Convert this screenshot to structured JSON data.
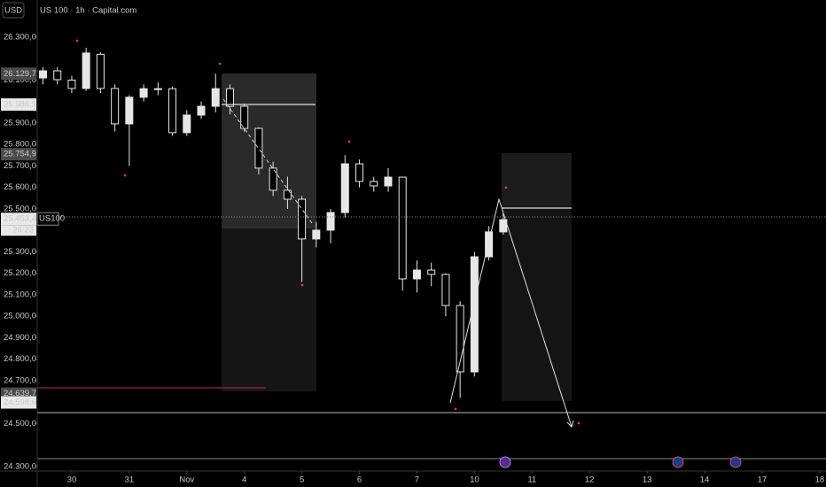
{
  "chart_data": {
    "type": "candlestick",
    "title": "US 100 · 1h · Capital.com",
    "currency": "USD",
    "symbol": "US100",
    "countdown": "26:23",
    "color": "#e6e6e6",
    "x": [
      -0.5,
      -0.25,
      0,
      0.25,
      0.5,
      0.75,
      1,
      1.25,
      1.5,
      1.75,
      2,
      2.25,
      2.5,
      2.75,
      3,
      3.25,
      3.5,
      3.75,
      4,
      4.25,
      4.5,
      4.75,
      5,
      5.25,
      5.5,
      5.75,
      6,
      6.25,
      6.5,
      6.75,
      7,
      7.25,
      7.5
    ],
    "open": [
      26110,
      26143,
      26100,
      26061,
      26220,
      26061,
      25896,
      26020,
      26060,
      26060,
      25855,
      25937,
      25978,
      26060,
      25978,
      25875,
      25690,
      25587,
      25545,
      25360,
      25401,
      25483,
      25710,
      25628,
      25607,
      25648,
      25174,
      25215,
      25195,
      25050,
      24741,
      25277,
      25393
    ],
    "high": [
      26160,
      26160,
      26120,
      26250,
      26230,
      26080,
      26030,
      26080,
      26090,
      26070,
      25960,
      26000,
      26130,
      26080,
      25990,
      25880,
      25720,
      25650,
      25560,
      25440,
      25500,
      25750,
      25730,
      25650,
      25690,
      25650,
      25260,
      25250,
      25200,
      25070,
      25300,
      25420,
      25480
    ],
    "low": [
      26080,
      26080,
      26040,
      26050,
      26040,
      25860,
      25700,
      26000,
      26030,
      25840,
      25840,
      25920,
      25950,
      25940,
      25860,
      25660,
      25560,
      25500,
      25160,
      25320,
      25340,
      25460,
      25600,
      25580,
      25580,
      25120,
      25110,
      25140,
      25000,
      24620,
      24720,
      25260,
      25380
    ],
    "close": [
      26143,
      26102,
      26061,
      26226,
      26061,
      25896,
      26020,
      26060,
      26060,
      25855,
      25937,
      25978,
      26060,
      25978,
      25875,
      25690,
      25587,
      25545,
      25360,
      25401,
      25483,
      25710,
      25628,
      25607,
      25648,
      25174,
      25215,
      25195,
      25050,
      24741,
      25277,
      25393,
      25450
    ],
    "xlim": [
      -0.6,
      13.11
    ],
    "ylim": [
      24279,
      26473
    ],
    "xticks": [
      {
        "value": 0,
        "label": "30"
      },
      {
        "value": 1,
        "label": "31"
      },
      {
        "value": 2,
        "label": "Nov"
      },
      {
        "value": 3,
        "label": "4"
      },
      {
        "value": 4,
        "label": "5"
      },
      {
        "value": 5,
        "label": "6"
      },
      {
        "value": 6,
        "label": "7"
      },
      {
        "value": 7,
        "label": "10"
      },
      {
        "value": 8,
        "label": "11"
      },
      {
        "value": 9,
        "label": "12"
      },
      {
        "value": 10,
        "label": "13"
      },
      {
        "value": 11,
        "label": "14"
      },
      {
        "value": 12,
        "label": "17"
      },
      {
        "value": 13,
        "label": "18"
      }
    ],
    "yticks": [
      {
        "value": 26300,
        "label": "26.300,0"
      },
      {
        "value": 26100,
        "label": "26.100,0"
      },
      {
        "value": 25900,
        "label": "25.900,0"
      },
      {
        "value": 25800,
        "label": "25.800,0"
      },
      {
        "value": 25700,
        "label": "25.700,0"
      },
      {
        "value": 25600,
        "label": "25.600,0"
      },
      {
        "value": 25500,
        "label": "25.500,0"
      },
      {
        "value": 25300,
        "label": "25.300,0"
      },
      {
        "value": 25200,
        "label": "25.200,0"
      },
      {
        "value": 25100,
        "label": "25.100,0"
      },
      {
        "value": 25000,
        "label": "25.000,0"
      },
      {
        "value": 24900,
        "label": "24.900,0"
      },
      {
        "value": 24800,
        "label": "24.800,0"
      },
      {
        "value": 24700,
        "label": "24.700,0"
      },
      {
        "value": 24500,
        "label": "24.500,0"
      },
      {
        "value": 24300,
        "label": "24.300,0"
      }
    ],
    "price_labels": [
      {
        "value": 26129.7,
        "label": "26.129,7",
        "style": "dark"
      },
      {
        "value": 25986.1,
        "label": "25.986,1",
        "style": "light"
      },
      {
        "value": 25754.9,
        "label": "25.754,9",
        "style": "dark"
      },
      {
        "value": 24639.7,
        "label": "24.639,7",
        "style": "dark"
      },
      {
        "value": 24598.6,
        "label": "24.598,6",
        "style": "light"
      }
    ],
    "last_price": {
      "value": 25453.4,
      "label": "25.453,4"
    }
  }
}
